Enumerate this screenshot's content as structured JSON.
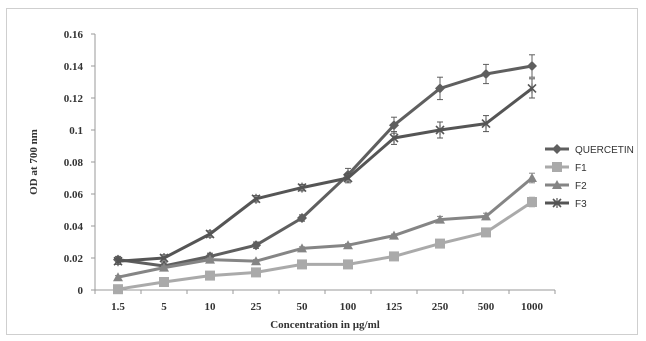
{
  "chart_data": {
    "type": "line",
    "title": "",
    "xlabel": "Concentration in µg/ml",
    "ylabel": "OD at 700 nm",
    "categories": [
      "1.5",
      "5",
      "10",
      "25",
      "50",
      "100",
      "125",
      "250",
      "500",
      "1000"
    ],
    "y_ticks": [
      "0",
      "0.02",
      "0.04",
      "0.06",
      "0.08",
      "0.1",
      "0.12",
      "0.14",
      "0.16"
    ],
    "ylim": [
      0,
      0.16
    ],
    "grid": false,
    "legend_position": "right",
    "series": [
      {
        "name": "QUERCETIN",
        "marker": "diamond",
        "color": "#5f5f5f",
        "values": [
          0.019,
          0.015,
          0.021,
          0.028,
          0.045,
          0.072,
          0.103,
          0.126,
          0.135,
          0.14
        ],
        "errors": [
          0.002,
          0.002,
          0.002,
          0.002,
          0.002,
          0.004,
          0.005,
          0.007,
          0.006,
          0.007
        ]
      },
      {
        "name": "F1",
        "marker": "square",
        "color": "#aaaaaa",
        "values": [
          0.0005,
          0.005,
          0.009,
          0.011,
          0.016,
          0.016,
          0.021,
          0.029,
          0.036,
          0.055
        ],
        "errors": [
          0.001,
          0.001,
          0.001,
          0.001,
          0.001,
          0.001,
          0.001,
          0.002,
          0.002,
          0.003
        ]
      },
      {
        "name": "F2",
        "marker": "triangle",
        "color": "#858585",
        "values": [
          0.008,
          0.014,
          0.019,
          0.018,
          0.026,
          0.028,
          0.034,
          0.044,
          0.046,
          0.07
        ],
        "errors": [
          0.001,
          0.001,
          0.001,
          0.001,
          0.001,
          0.001,
          0.001,
          0.002,
          0.002,
          0.003
        ]
      },
      {
        "name": "F3",
        "marker": "star",
        "color": "#555555",
        "values": [
          0.018,
          0.02,
          0.035,
          0.057,
          0.064,
          0.07,
          0.095,
          0.1,
          0.104,
          0.126
        ],
        "errors": [
          0.002,
          0.002,
          0.002,
          0.002,
          0.002,
          0.003,
          0.004,
          0.005,
          0.005,
          0.006
        ]
      }
    ]
  }
}
